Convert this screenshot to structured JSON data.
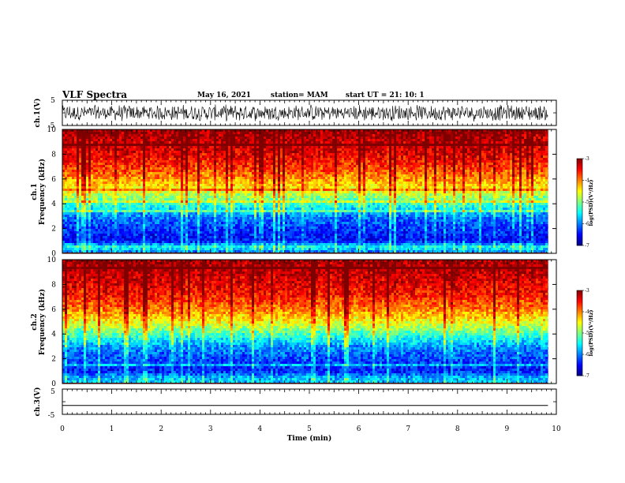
{
  "header": {
    "title": "VLF Spectra",
    "date": "May 16, 2021",
    "station": "station= MAM",
    "start_ut": "start  UT =   21: 10: 1"
  },
  "colors": {
    "colormap": [
      "#00007f",
      "#0000ff",
      "#007fff",
      "#00ffff",
      "#7fff7f",
      "#ffff00",
      "#ff7f00",
      "#ff0000",
      "#7f0000"
    ],
    "waveform": "#000000"
  },
  "chart_data": [
    {
      "type": "line",
      "name": "ch1-waveform",
      "ylabel": "ch.1(V)",
      "ylim": [
        -5,
        5
      ],
      "yticklabels": [
        "5",
        "-5"
      ],
      "x_range_min": [
        0,
        9.83
      ],
      "description_values": "dense noise-like waveform roughly between -3.5 and 3.5 V",
      "amplitude_V": 3.5
    },
    {
      "type": "heatmap",
      "name": "ch1-spectrogram",
      "ylabel_line1": "ch.1",
      "ylabel_line2": "Frequency  (kHz)",
      "ylim": [
        0,
        10
      ],
      "yticks": [
        0,
        2,
        4,
        6,
        8,
        10
      ],
      "x_range_min": [
        0,
        9.83
      ],
      "color_range_log": [
        -7,
        -3
      ],
      "colorbar_ticks": [
        -3,
        -4,
        -5,
        -6,
        -7
      ],
      "colorbar_label": "log(PSD)(V²/Hz)",
      "band_profile_kHz_log": [
        [
          0.0,
          -6.2
        ],
        [
          0.5,
          -5.4
        ],
        [
          1.0,
          -6.5
        ],
        [
          2.0,
          -6.3
        ],
        [
          3.0,
          -6.0
        ],
        [
          4.0,
          -5.3
        ],
        [
          5.0,
          -4.6
        ],
        [
          6.0,
          -4.1
        ],
        [
          7.0,
          -3.7
        ],
        [
          8.0,
          -3.4
        ],
        [
          10.0,
          -3.1
        ]
      ]
    },
    {
      "type": "heatmap",
      "name": "ch2-spectrogram",
      "ylabel_line1": "ch.2",
      "ylabel_line2": "Frequency  (kHz)",
      "ylim": [
        0,
        10
      ],
      "yticks": [
        0,
        2,
        4,
        6,
        8,
        10
      ],
      "x_range_min": [
        0,
        9.83
      ],
      "color_range_log": [
        -7,
        -3
      ],
      "colorbar_ticks": [
        -3,
        -4,
        -5,
        -6,
        -7
      ],
      "colorbar_label": "log(PSD)(V²/Hz)",
      "band_profile_kHz_log": [
        [
          0.0,
          -5.6
        ],
        [
          0.5,
          -5.8
        ],
        [
          1.0,
          -6.4
        ],
        [
          2.0,
          -6.2
        ],
        [
          3.0,
          -5.9
        ],
        [
          4.0,
          -5.2
        ],
        [
          5.0,
          -4.5
        ],
        [
          6.0,
          -4.0
        ],
        [
          7.0,
          -3.6
        ],
        [
          8.0,
          -3.4
        ],
        [
          10.0,
          -3.1
        ]
      ]
    },
    {
      "type": "line",
      "name": "ch3-waveform",
      "ylabel": "ch.3(V)",
      "ylim": [
        -5,
        5
      ],
      "yticklabels": [
        "5",
        "-5"
      ],
      "x_range_min": [
        0,
        9.83
      ],
      "values_constant_V": -1.5
    }
  ],
  "xaxis": {
    "label": "Time  (min)",
    "range": [
      0,
      10
    ],
    "ticks": [
      "0",
      "1",
      "2",
      "3",
      "4",
      "5",
      "6",
      "7",
      "8",
      "9",
      "10"
    ]
  }
}
